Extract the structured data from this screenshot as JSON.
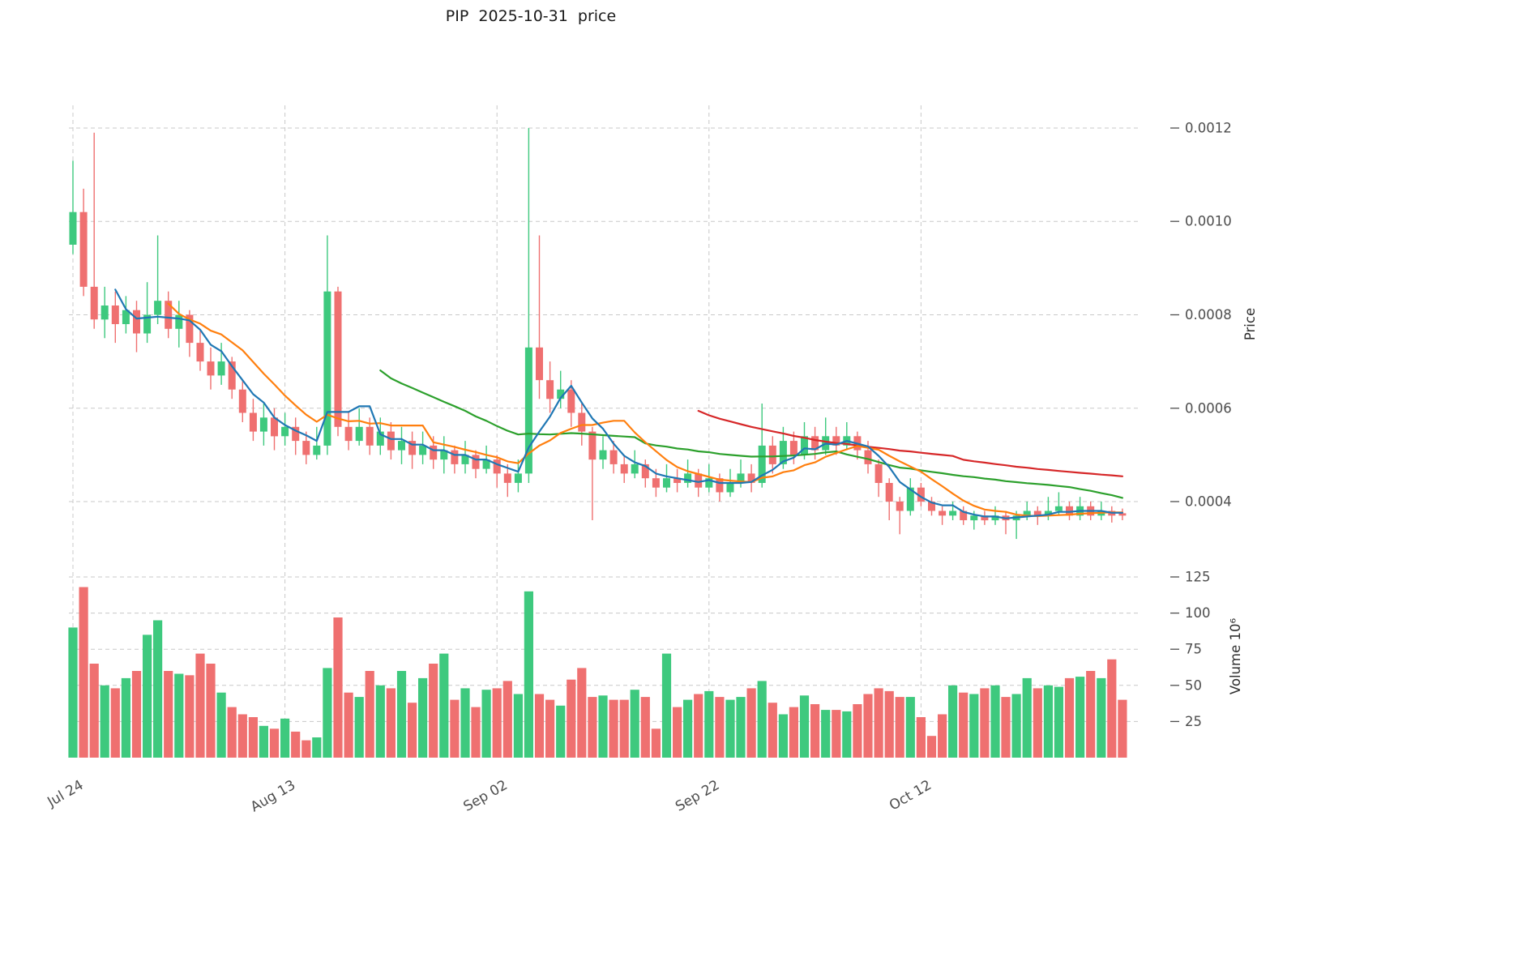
{
  "chart_data": {
    "type": "candlestick",
    "title": "PIP  2025-10-31  price",
    "grid": true,
    "legend": false,
    "x_axis": {
      "tick_labels": [
        "Jul 24",
        "Aug 13",
        "Sep 02",
        "Sep 22",
        "Oct 12"
      ],
      "tick_indices": [
        0,
        20,
        40,
        60,
        80
      ]
    },
    "price_axis": {
      "label": "Price",
      "side": "right",
      "ticks": [
        0.0012,
        0.001,
        0.0008,
        0.0006,
        0.0004
      ],
      "tick_labels": [
        "0.0012",
        "0.0010",
        "0.0008",
        "0.0006",
        "0.0004"
      ],
      "range": [
        0.00028,
        0.00125
      ]
    },
    "volume_axis": {
      "label": "Volume  10⁶",
      "side": "right",
      "ticks": [
        125,
        100,
        75,
        50,
        25
      ],
      "tick_labels": [
        "125",
        "100",
        "75",
        "50",
        "25"
      ],
      "range": [
        0,
        130
      ]
    },
    "colors": {
      "up": "#3ec97e",
      "down": "#ef7070",
      "grid": "#c8c8c8",
      "tick_text": "#4d4d4d",
      "axis_label_text": "#2e2e2e",
      "title_text": "#1a1a1a",
      "background": "#ffffff",
      "ma5": "#1f77b4",
      "ma10": "#ff7f0e",
      "ma30": "#2ca02c",
      "ma60": "#d62728"
    },
    "moving_averages": [
      {
        "name": "SMA5",
        "window": 5,
        "color": "#1f77b4"
      },
      {
        "name": "SMA10",
        "window": 10,
        "color": "#ff7f0e"
      },
      {
        "name": "SMA30",
        "window": 30,
        "color": "#2ca02c"
      },
      {
        "name": "SMA60",
        "window": 60,
        "color": "#d62728"
      }
    ],
    "candles": {
      "columns": [
        "date",
        "open",
        "high",
        "low",
        "close",
        "volume_millions"
      ],
      "rows": [
        [
          "Jul 24",
          0.00095,
          0.00113,
          0.00093,
          0.00102,
          90
        ],
        [
          "Jul 25",
          0.00102,
          0.00107,
          0.00084,
          0.00086,
          118
        ],
        [
          "Jul 26",
          0.00086,
          0.00119,
          0.00077,
          0.00079,
          65
        ],
        [
          "Jul 27",
          0.00079,
          0.00086,
          0.00075,
          0.00082,
          50
        ],
        [
          "Jul 28",
          0.00082,
          0.00085,
          0.00074,
          0.00078,
          48
        ],
        [
          "Jul 29",
          0.00078,
          0.00084,
          0.00076,
          0.00081,
          55
        ],
        [
          "Jul 30",
          0.00081,
          0.00083,
          0.00072,
          0.00076,
          60
        ],
        [
          "Jul 31",
          0.00076,
          0.00087,
          0.00074,
          0.0008,
          85
        ],
        [
          "Aug 01",
          0.0008,
          0.00097,
          0.00078,
          0.00083,
          95
        ],
        [
          "Aug 02",
          0.00083,
          0.00085,
          0.00075,
          0.00077,
          60
        ],
        [
          "Aug 03",
          0.00077,
          0.00083,
          0.00073,
          0.0008,
          58
        ],
        [
          "Aug 04",
          0.0008,
          0.00081,
          0.00071,
          0.00074,
          57
        ],
        [
          "Aug 05",
          0.00074,
          0.00077,
          0.00068,
          0.0007,
          72
        ],
        [
          "Aug 06",
          0.0007,
          0.00073,
          0.00064,
          0.00067,
          65
        ],
        [
          "Aug 07",
          0.00067,
          0.00074,
          0.00065,
          0.0007,
          45
        ],
        [
          "Aug 08",
          0.0007,
          0.00071,
          0.00062,
          0.00064,
          35
        ],
        [
          "Aug 09",
          0.00064,
          0.00066,
          0.00057,
          0.00059,
          30
        ],
        [
          "Aug 10",
          0.00059,
          0.00062,
          0.00053,
          0.00055,
          28
        ],
        [
          "Aug 11",
          0.00055,
          0.00061,
          0.00052,
          0.00058,
          22
        ],
        [
          "Aug 12",
          0.00058,
          0.0006,
          0.00051,
          0.00054,
          20
        ],
        [
          "Aug 13",
          0.00054,
          0.00059,
          0.00052,
          0.00056,
          27
        ],
        [
          "Aug 14",
          0.00056,
          0.00058,
          0.0005,
          0.00053,
          18
        ],
        [
          "Aug 15",
          0.00053,
          0.00055,
          0.00048,
          0.0005,
          12
        ],
        [
          "Aug 16",
          0.0005,
          0.00056,
          0.00049,
          0.00052,
          14
        ],
        [
          "Aug 17",
          0.00052,
          0.00097,
          0.0005,
          0.00085,
          62
        ],
        [
          "Aug 18",
          0.00085,
          0.00086,
          0.00054,
          0.00056,
          97
        ],
        [
          "Aug 19",
          0.00056,
          0.00059,
          0.00051,
          0.00053,
          45
        ],
        [
          "Aug 20",
          0.00053,
          0.0006,
          0.00052,
          0.00056,
          42
        ],
        [
          "Aug 21",
          0.00056,
          0.00058,
          0.0005,
          0.00052,
          60
        ],
        [
          "Aug 22",
          0.00052,
          0.00058,
          0.0005,
          0.00055,
          50
        ],
        [
          "Aug 23",
          0.00055,
          0.00057,
          0.00049,
          0.00051,
          48
        ],
        [
          "Aug 24",
          0.00051,
          0.00056,
          0.00048,
          0.00053,
          60
        ],
        [
          "Aug 25",
          0.00053,
          0.00055,
          0.00047,
          0.0005,
          38
        ],
        [
          "Aug 26",
          0.0005,
          0.00055,
          0.00048,
          0.00052,
          55
        ],
        [
          "Aug 27",
          0.00052,
          0.00054,
          0.00047,
          0.00049,
          65
        ],
        [
          "Aug 28",
          0.00049,
          0.00054,
          0.00046,
          0.00051,
          72
        ],
        [
          "Aug 29",
          0.00051,
          0.00052,
          0.00046,
          0.00048,
          40
        ],
        [
          "Aug 30",
          0.00048,
          0.00053,
          0.00046,
          0.0005,
          48
        ],
        [
          "Aug 31",
          0.0005,
          0.00051,
          0.00045,
          0.00047,
          35
        ],
        [
          "Sep 01",
          0.00047,
          0.00052,
          0.00046,
          0.00049,
          47
        ],
        [
          "Sep 02",
          0.00049,
          0.0005,
          0.00043,
          0.00046,
          48
        ],
        [
          "Sep 03",
          0.00046,
          0.00048,
          0.00041,
          0.00044,
          53
        ],
        [
          "Sep 04",
          0.00044,
          0.00049,
          0.00042,
          0.00046,
          44
        ],
        [
          "Sep 05",
          0.00046,
          0.0012,
          0.00044,
          0.00073,
          115
        ],
        [
          "Sep 06",
          0.00073,
          0.00097,
          0.00062,
          0.00066,
          44
        ],
        [
          "Sep 07",
          0.00066,
          0.0007,
          0.00059,
          0.00062,
          40
        ],
        [
          "Sep 08",
          0.00062,
          0.00068,
          0.0006,
          0.00064,
          36
        ],
        [
          "Sep 09",
          0.00064,
          0.00066,
          0.00056,
          0.00059,
          54
        ],
        [
          "Sep 10",
          0.00059,
          0.00061,
          0.00052,
          0.00055,
          62
        ],
        [
          "Sep 11",
          0.00055,
          0.00056,
          0.00036,
          0.00049,
          42
        ],
        [
          "Sep 12",
          0.00049,
          0.00054,
          0.00047,
          0.00051,
          43
        ],
        [
          "Sep 13",
          0.00051,
          0.00053,
          0.00046,
          0.00048,
          40
        ],
        [
          "Sep 14",
          0.00048,
          0.0005,
          0.00044,
          0.00046,
          40
        ],
        [
          "Sep 15",
          0.00046,
          0.00051,
          0.00045,
          0.00048,
          47
        ],
        [
          "Sep 16",
          0.00048,
          0.00049,
          0.00043,
          0.00045,
          42
        ],
        [
          "Sep 17",
          0.00045,
          0.00047,
          0.00041,
          0.00043,
          20
        ],
        [
          "Sep 18",
          0.00043,
          0.00048,
          0.00042,
          0.00045,
          72
        ],
        [
          "Sep 19",
          0.00045,
          0.00047,
          0.00042,
          0.00044,
          35
        ],
        [
          "Sep 20",
          0.00044,
          0.00049,
          0.00043,
          0.00046,
          40
        ],
        [
          "Sep 21",
          0.00046,
          0.00047,
          0.00041,
          0.00043,
          44
        ],
        [
          "Sep 22",
          0.00043,
          0.00048,
          0.00042,
          0.00045,
          46
        ],
        [
          "Sep 23",
          0.00045,
          0.00046,
          0.0004,
          0.00042,
          42
        ],
        [
          "Sep 24",
          0.00042,
          0.00047,
          0.00041,
          0.00044,
          40
        ],
        [
          "Sep 25",
          0.00044,
          0.00049,
          0.00043,
          0.00046,
          42
        ],
        [
          "Sep 26",
          0.00046,
          0.00048,
          0.00042,
          0.00044,
          48
        ],
        [
          "Sep 27",
          0.00044,
          0.00061,
          0.00043,
          0.00052,
          53
        ],
        [
          "Sep 28",
          0.00052,
          0.00054,
          0.00046,
          0.00048,
          38
        ],
        [
          "Sep 29",
          0.00048,
          0.00056,
          0.00047,
          0.00053,
          30
        ],
        [
          "Sep 30",
          0.00053,
          0.00055,
          0.00048,
          0.0005,
          35
        ],
        [
          "Oct 01",
          0.0005,
          0.00057,
          0.00049,
          0.00054,
          43
        ],
        [
          "Oct 02",
          0.00054,
          0.00056,
          0.00049,
          0.00051,
          37
        ],
        [
          "Oct 03",
          0.00051,
          0.00058,
          0.0005,
          0.00054,
          33
        ],
        [
          "Oct 04",
          0.00054,
          0.00056,
          0.0005,
          0.00052,
          33
        ],
        [
          "Oct 05",
          0.00052,
          0.00057,
          0.00051,
          0.00054,
          32
        ],
        [
          "Oct 06",
          0.00054,
          0.00055,
          0.00049,
          0.00051,
          37
        ],
        [
          "Oct 07",
          0.00051,
          0.00053,
          0.00046,
          0.00048,
          44
        ],
        [
          "Oct 08",
          0.00048,
          0.00049,
          0.00041,
          0.00044,
          48
        ],
        [
          "Oct 09",
          0.00044,
          0.00045,
          0.00036,
          0.0004,
          46
        ],
        [
          "Oct 10",
          0.0004,
          0.00041,
          0.00033,
          0.00038,
          42
        ],
        [
          "Oct 11",
          0.00038,
          0.00045,
          0.00037,
          0.00043,
          42
        ],
        [
          "Oct 12",
          0.00043,
          0.00044,
          0.00039,
          0.0004,
          28
        ],
        [
          "Oct 13",
          0.0004,
          0.00041,
          0.00037,
          0.00038,
          15
        ],
        [
          "Oct 14",
          0.00038,
          0.00039,
          0.00035,
          0.00037,
          30
        ],
        [
          "Oct 15",
          0.00037,
          0.0004,
          0.00036,
          0.00038,
          50
        ],
        [
          "Oct 16",
          0.00038,
          0.00039,
          0.00035,
          0.00036,
          45
        ],
        [
          "Oct 17",
          0.00036,
          0.00038,
          0.00034,
          0.00037,
          44
        ],
        [
          "Oct 18",
          0.00037,
          0.00038,
          0.00035,
          0.00036,
          48
        ],
        [
          "Oct 19",
          0.00036,
          0.00039,
          0.00035,
          0.00037,
          50
        ],
        [
          "Oct 20",
          0.00037,
          0.00038,
          0.00033,
          0.00036,
          42
        ],
        [
          "Oct 21",
          0.00036,
          0.00038,
          0.00032,
          0.00037,
          44
        ],
        [
          "Oct 22",
          0.00037,
          0.0004,
          0.00036,
          0.00038,
          55
        ],
        [
          "Oct 23",
          0.00038,
          0.00039,
          0.00035,
          0.00037,
          48
        ],
        [
          "Oct 24",
          0.00037,
          0.00041,
          0.00036,
          0.00038,
          50
        ],
        [
          "Oct 25",
          0.00038,
          0.00042,
          0.00037,
          0.00039,
          49
        ],
        [
          "Oct 26",
          0.00039,
          0.0004,
          0.00036,
          0.00037,
          55
        ],
        [
          "Oct 27",
          0.00037,
          0.00041,
          0.00036,
          0.00039,
          56
        ],
        [
          "Oct 28",
          0.00039,
          0.0004,
          0.00036,
          0.00037,
          60
        ],
        [
          "Oct 29",
          0.00037,
          0.0004,
          0.00036,
          0.00038,
          55
        ],
        [
          "Oct 30",
          0.00038,
          0.00039,
          0.000355,
          0.00037,
          68
        ],
        [
          "Oct 31",
          0.000375,
          0.000385,
          0.00036,
          0.00037,
          40
        ]
      ]
    }
  }
}
